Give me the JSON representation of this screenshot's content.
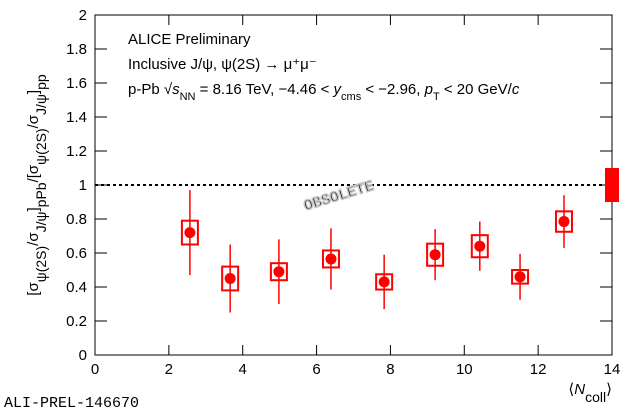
{
  "chart_data": {
    "type": "scatter",
    "y_label": [
      {
        "text": "[σ",
        "sub": false
      },
      {
        "text": "ψ(2S)",
        "sub": true
      },
      {
        "text": "/σ",
        "sub": false
      },
      {
        "text": "J/ψ",
        "sub": true
      },
      {
        "text": "]",
        "sub": false
      },
      {
        "text": "pPb",
        "sub": true
      },
      {
        "text": "/[σ",
        "sub": false
      },
      {
        "text": "ψ(2S)",
        "sub": true
      },
      {
        "text": "/σ",
        "sub": false
      },
      {
        "text": "J/ψ",
        "sub": true
      },
      {
        "text": "]",
        "sub": false
      },
      {
        "text": "pp",
        "sub": true
      }
    ],
    "x_label": [
      {
        "text": "⟨",
        "sub": false,
        "italic": false
      },
      {
        "text": "N",
        "sub": false,
        "italic": true
      },
      {
        "text": "coll",
        "sub": true,
        "italic": false
      },
      {
        "text": "⟩",
        "sub": false,
        "italic": false
      }
    ],
    "annotations": [
      [
        {
          "text": "ALICE Preliminary",
          "sub": false,
          "italic": false
        }
      ],
      [
        {
          "text": "Inclusive J/ψ, ψ(2S) → μ⁺μ⁻",
          "sub": false,
          "italic": false
        }
      ],
      [
        {
          "text": "p-Pb √",
          "sub": false,
          "italic": false
        },
        {
          "text": "s",
          "sub": false,
          "italic": true
        },
        {
          "text": "NN",
          "sub": true,
          "italic": false
        },
        {
          "text": " = 8.16 TeV, −4.46 < ",
          "sub": false,
          "italic": false
        },
        {
          "text": "y",
          "sub": false,
          "italic": true
        },
        {
          "text": "cms",
          "sub": true,
          "italic": false
        },
        {
          "text": " < −2.96, ",
          "sub": false,
          "italic": false
        },
        {
          "text": "p",
          "sub": false,
          "italic": true
        },
        {
          "text": "T",
          "sub": true,
          "italic": false
        },
        {
          "text": " < 20 GeV/",
          "sub": false,
          "italic": false
        },
        {
          "text": "c",
          "sub": false,
          "italic": true
        }
      ]
    ],
    "watermark": "OBSOLETE",
    "footer": "ALI-PREL-146670",
    "x": [
      2.57,
      3.66,
      4.98,
      6.39,
      7.83,
      9.21,
      10.42,
      11.51,
      12.7
    ],
    "values": [
      0.72,
      0.45,
      0.49,
      0.565,
      0.43,
      0.59,
      0.64,
      0.46,
      0.785
    ],
    "stat_errors": [
      0.25,
      0.2,
      0.19,
      0.18,
      0.16,
      0.15,
      0.145,
      0.135,
      0.155
    ],
    "sys_errors": [
      0.07,
      0.07,
      0.05,
      0.05,
      0.045,
      0.065,
      0.065,
      0.04,
      0.06
    ],
    "color": "#ff0000",
    "reference_line": 1,
    "global_uncertainty": 0.1,
    "xlim": [
      0,
      14
    ],
    "xticks": [
      0,
      2,
      4,
      6,
      8,
      10,
      12,
      14
    ],
    "ylim": [
      0,
      2
    ],
    "yticks": [
      0,
      0.2,
      0.4,
      0.6,
      0.8,
      1,
      1.2,
      1.4,
      1.6,
      1.8,
      2
    ]
  }
}
